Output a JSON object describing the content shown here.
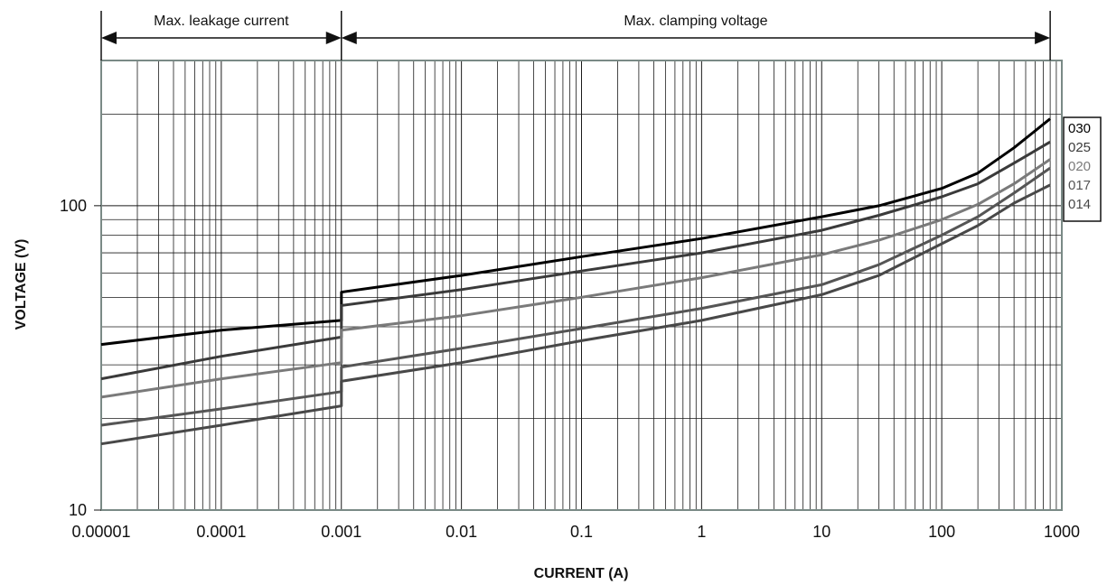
{
  "chart_data": {
    "type": "line",
    "x_scale": "log",
    "y_scale": "log",
    "xlabel": "CURRENT (A)",
    "ylabel": "VOLTAGE (V)",
    "xlim": [
      1e-05,
      1000
    ],
    "ylim": [
      10,
      300
    ],
    "x_ticks": [
      {
        "value": 1e-05,
        "label": "0.00001"
      },
      {
        "value": 0.0001,
        "label": "0.0001"
      },
      {
        "value": 0.001,
        "label": "0.001"
      },
      {
        "value": 0.01,
        "label": "0.01"
      },
      {
        "value": 0.1,
        "label": "0.1"
      },
      {
        "value": 1,
        "label": "1"
      },
      {
        "value": 10,
        "label": "10"
      },
      {
        "value": 100,
        "label": "100"
      },
      {
        "value": 1000,
        "label": "1000"
      }
    ],
    "y_ticks": [
      {
        "value": 10,
        "label": "10"
      },
      {
        "value": 100,
        "label": "100"
      }
    ],
    "grid": true,
    "legend_position": "right",
    "regions": [
      {
        "label": "Max. leakage current",
        "x_from": 1e-05,
        "x_to": 0.001
      },
      {
        "label": "Max. clamping voltage",
        "x_from": 0.001,
        "x_to": 800
      }
    ],
    "series": [
      {
        "name": "030",
        "color": "#000000",
        "points": [
          [
            1e-05,
            35
          ],
          [
            0.0001,
            39
          ],
          [
            0.001,
            42
          ],
          [
            0.001,
            52
          ],
          [
            0.01,
            59
          ],
          [
            0.1,
            68
          ],
          [
            1,
            78
          ],
          [
            10,
            92
          ],
          [
            30,
            100
          ],
          [
            100,
            114
          ],
          [
            200,
            128
          ],
          [
            400,
            155
          ],
          [
            800,
            193
          ]
        ]
      },
      {
        "name": "025",
        "color": "#3a3a3a",
        "points": [
          [
            1e-05,
            27
          ],
          [
            0.0001,
            32
          ],
          [
            0.001,
            37
          ],
          [
            0.001,
            47
          ],
          [
            0.01,
            53
          ],
          [
            0.1,
            61
          ],
          [
            1,
            70
          ],
          [
            10,
            83
          ],
          [
            30,
            93
          ],
          [
            100,
            107
          ],
          [
            200,
            118
          ],
          [
            400,
            138
          ],
          [
            800,
            162
          ]
        ]
      },
      {
        "name": "020",
        "color": "#7a7a7a",
        "points": [
          [
            1e-05,
            23.5
          ],
          [
            0.0001,
            27
          ],
          [
            0.001,
            30.5
          ],
          [
            0.001,
            39
          ],
          [
            0.01,
            43.5
          ],
          [
            0.1,
            50
          ],
          [
            1,
            58
          ],
          [
            10,
            69
          ],
          [
            30,
            77
          ],
          [
            100,
            90
          ],
          [
            200,
            101
          ],
          [
            400,
            118
          ],
          [
            800,
            142
          ]
        ]
      },
      {
        "name": "017",
        "color": "#555555",
        "points": [
          [
            1e-05,
            19
          ],
          [
            0.0001,
            21.5
          ],
          [
            0.001,
            24.5
          ],
          [
            0.001,
            29.5
          ],
          [
            0.01,
            34
          ],
          [
            0.1,
            39.5
          ],
          [
            1,
            46
          ],
          [
            10,
            55
          ],
          [
            30,
            64
          ],
          [
            100,
            80
          ],
          [
            200,
            92
          ],
          [
            400,
            110
          ],
          [
            800,
            133
          ]
        ]
      },
      {
        "name": "014",
        "color": "#484848",
        "points": [
          [
            1e-05,
            16.5
          ],
          [
            0.0001,
            19
          ],
          [
            0.001,
            22
          ],
          [
            0.001,
            26.5
          ],
          [
            0.01,
            30.5
          ],
          [
            0.1,
            36
          ],
          [
            1,
            42
          ],
          [
            10,
            51
          ],
          [
            30,
            59
          ],
          [
            100,
            75
          ],
          [
            200,
            86
          ],
          [
            400,
            102
          ],
          [
            800,
            117
          ]
        ]
      }
    ]
  }
}
